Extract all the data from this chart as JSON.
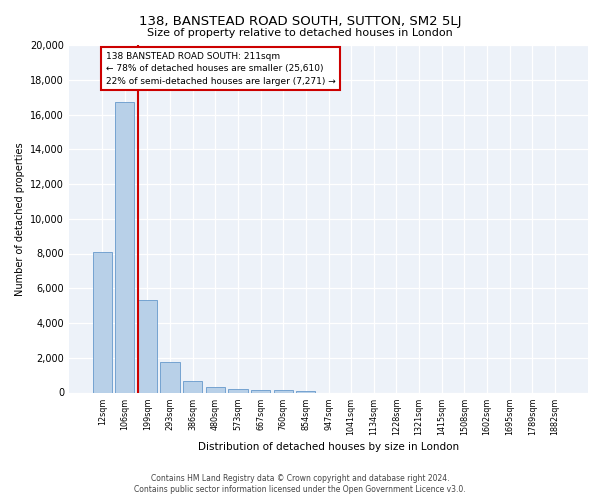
{
  "title1": "138, BANSTEAD ROAD SOUTH, SUTTON, SM2 5LJ",
  "title2": "Size of property relative to detached houses in London",
  "xlabel": "Distribution of detached houses by size in London",
  "ylabel": "Number of detached properties",
  "categories": [
    "12sqm",
    "106sqm",
    "199sqm",
    "293sqm",
    "386sqm",
    "480sqm",
    "573sqm",
    "667sqm",
    "760sqm",
    "854sqm",
    "947sqm",
    "1041sqm",
    "1134sqm",
    "1228sqm",
    "1321sqm",
    "1415sqm",
    "1508sqm",
    "1602sqm",
    "1695sqm",
    "1789sqm",
    "1882sqm"
  ],
  "bar_heights": [
    8100,
    16700,
    5300,
    1750,
    650,
    330,
    230,
    170,
    150,
    90,
    0,
    0,
    0,
    0,
    0,
    0,
    0,
    0,
    0,
    0,
    0
  ],
  "bar_color": "#b8d0e8",
  "bar_edge_color": "#6699cc",
  "vline_x_idx": 2,
  "vline_color": "#cc0000",
  "annotation_text": "138 BANSTEAD ROAD SOUTH: 211sqm\n← 78% of detached houses are smaller (25,610)\n22% of semi-detached houses are larger (7,271) →",
  "annotation_box_color": "#cc0000",
  "ylim": [
    0,
    20000
  ],
  "yticks": [
    0,
    2000,
    4000,
    6000,
    8000,
    10000,
    12000,
    14000,
    16000,
    18000,
    20000
  ],
  "bg_color": "#edf2f9",
  "footer1": "Contains HM Land Registry data © Crown copyright and database right 2024.",
  "footer2": "Contains public sector information licensed under the Open Government Licence v3.0."
}
